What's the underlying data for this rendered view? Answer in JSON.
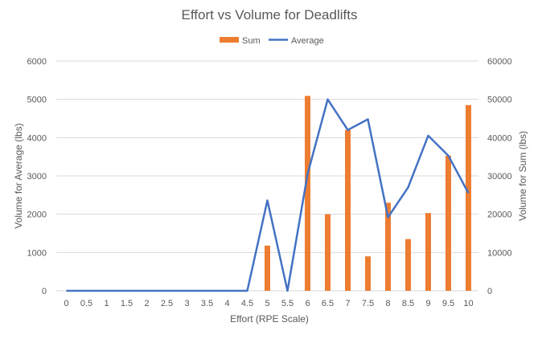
{
  "chart_data": {
    "type": "bar+line",
    "title": "Effort vs Volume for Deadlifts",
    "xlabel": "Effort (RPE Scale)",
    "ylabel_left": "Volume for Average (lbs)",
    "ylabel_right": "Volume for Sum (lbs)",
    "categories": [
      "0",
      "0.5",
      "1",
      "1.5",
      "2",
      "2.5",
      "3",
      "3.5",
      "4",
      "4.5",
      "5",
      "5.5",
      "6",
      "6.5",
      "7",
      "7.5",
      "8",
      "8.5",
      "9",
      "9.5",
      "10"
    ],
    "yticks_left": [
      "0",
      "1000",
      "2000",
      "3000",
      "4000",
      "5000",
      "6000"
    ],
    "yticks_right": [
      "0",
      "10000",
      "20000",
      "30000",
      "40000",
      "50000",
      "60000"
    ],
    "ylim_left": [
      0,
      6000
    ],
    "ylim_right": [
      0,
      60000
    ],
    "grid": true,
    "legend_position": "top",
    "series": [
      {
        "name": "Sum",
        "type": "bar",
        "axis": "right",
        "color": "#ED7D31",
        "values": [
          0,
          0,
          0,
          0,
          0,
          0,
          0,
          0,
          0,
          0,
          11800,
          0,
          50900,
          20000,
          42000,
          9000,
          23000,
          13500,
          20300,
          35300,
          48500
        ]
      },
      {
        "name": "Average",
        "type": "line",
        "axis": "left",
        "color": "#4472C4",
        "values": [
          0,
          0,
          0,
          0,
          0,
          0,
          0,
          0,
          0,
          0,
          2360,
          0,
          3050,
          5000,
          4200,
          4480,
          1920,
          2700,
          4050,
          3530,
          2550
        ]
      }
    ]
  }
}
